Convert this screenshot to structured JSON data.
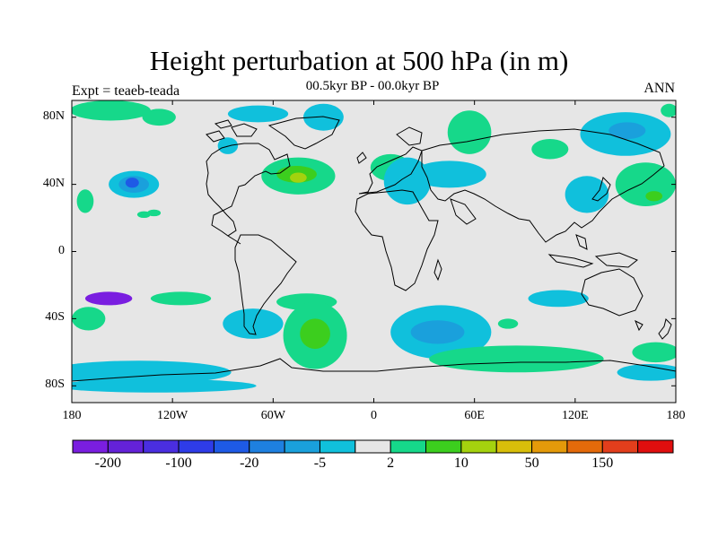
{
  "title": "Height perturbation at 500 hPa (in m)",
  "subtitle": "00.5kyr BP - 00.0kyr BP",
  "left_label": "Expt = teaeb-teada",
  "right_label": "ANN",
  "lat_ticks": [
    {
      "value": 80,
      "label": "80N"
    },
    {
      "value": 40,
      "label": "40N"
    },
    {
      "value": 0,
      "label": "0"
    },
    {
      "value": -40,
      "label": "40S"
    },
    {
      "value": -80,
      "label": "80S"
    }
  ],
  "lon_ticks": [
    {
      "value": -180,
      "label": "180"
    },
    {
      "value": -120,
      "label": "120W"
    },
    {
      "value": -60,
      "label": "60W"
    },
    {
      "value": 0,
      "label": "0"
    },
    {
      "value": 60,
      "label": "60E"
    },
    {
      "value": 120,
      "label": "120E"
    },
    {
      "value": 180,
      "label": "180"
    }
  ],
  "colorbar": {
    "colors": [
      "#7a1ee0",
      "#6422d8",
      "#4a2ee0",
      "#2e3ce8",
      "#1e5ae6",
      "#1e80e0",
      "#1aa0dc",
      "#10c0dc",
      "#e6e6e6",
      "#16d88a",
      "#3cce1e",
      "#a4d20e",
      "#d8be0a",
      "#e49a0a",
      "#e46a0a",
      "#e23e1c",
      "#e00e0e"
    ],
    "labels": [
      {
        "boundary": 1,
        "text": "-200"
      },
      {
        "boundary": 3,
        "text": "-100"
      },
      {
        "boundary": 5,
        "text": "-20"
      },
      {
        "boundary": 7,
        "text": "-5"
      },
      {
        "boundary": 9,
        "text": "2"
      },
      {
        "boundary": 11,
        "text": "10"
      },
      {
        "boundary": 13,
        "text": "50"
      },
      {
        "boundary": 15,
        "text": "150"
      }
    ]
  },
  "anomaly_regions": [
    {
      "lon": -143,
      "lat": 40,
      "rx": 15,
      "ry": 8,
      "level": "cyan"
    },
    {
      "lon": -143,
      "lat": 40,
      "rx": 9,
      "ry": 5,
      "level": "blue"
    },
    {
      "lon": -144,
      "lat": 41,
      "rx": 4,
      "ry": 3,
      "level": "deepblue"
    },
    {
      "lon": -157,
      "lat": 84,
      "rx": 24,
      "ry": 6,
      "level": "green"
    },
    {
      "lon": -128,
      "lat": 80,
      "rx": 10,
      "ry": 5,
      "level": "green"
    },
    {
      "lon": -172,
      "lat": 30,
      "rx": 5,
      "ry": 7,
      "level": "green"
    },
    {
      "lon": -137,
      "lat": 22,
      "rx": 4,
      "ry": 2,
      "level": "green"
    },
    {
      "lon": -69,
      "lat": 82,
      "rx": 18,
      "ry": 5,
      "level": "cyan"
    },
    {
      "lon": -87,
      "lat": 63,
      "rx": 6,
      "ry": 5,
      "level": "cyan"
    },
    {
      "lon": -45,
      "lat": 45,
      "rx": 22,
      "ry": 11,
      "level": "green"
    },
    {
      "lon": -46,
      "lat": 46,
      "rx": 12,
      "ry": 5,
      "level": "lime"
    },
    {
      "lon": -45,
      "lat": 44,
      "rx": 5,
      "ry": 3,
      "level": "yellow"
    },
    {
      "lon": -30,
      "lat": 80,
      "rx": 12,
      "ry": 8,
      "level": "cyan"
    },
    {
      "lon": 10,
      "lat": 50,
      "rx": 12,
      "ry": 8,
      "level": "green"
    },
    {
      "lon": 20,
      "lat": 42,
      "rx": 14,
      "ry": 14,
      "level": "cyan"
    },
    {
      "lon": 45,
      "lat": 46,
      "rx": 22,
      "ry": 8,
      "level": "cyan"
    },
    {
      "lon": 57,
      "lat": 71,
      "rx": 13,
      "ry": 13,
      "level": "green"
    },
    {
      "lon": 105,
      "lat": 61,
      "rx": 11,
      "ry": 6,
      "level": "green"
    },
    {
      "lon": 150,
      "lat": 70,
      "rx": 27,
      "ry": 13,
      "level": "cyan"
    },
    {
      "lon": 151,
      "lat": 72,
      "rx": 11,
      "ry": 5,
      "level": "blue"
    },
    {
      "lon": 162,
      "lat": 40,
      "rx": 18,
      "ry": 13,
      "level": "green"
    },
    {
      "lon": 167,
      "lat": 33,
      "rx": 5,
      "ry": 3,
      "level": "lime"
    },
    {
      "lon": 127,
      "lat": 34,
      "rx": 13,
      "ry": 11,
      "level": "cyan"
    },
    {
      "lon": 176,
      "lat": 84,
      "rx": 5,
      "ry": 4,
      "level": "green"
    },
    {
      "lon": -131,
      "lat": 23,
      "rx": 4,
      "ry": 2,
      "level": "green"
    },
    {
      "lon": -158,
      "lat": -28,
      "rx": 14,
      "ry": 4,
      "level": "violet"
    },
    {
      "lon": -115,
      "lat": -28,
      "rx": 18,
      "ry": 4,
      "level": "green"
    },
    {
      "lon": -170,
      "lat": -40,
      "rx": 10,
      "ry": 7,
      "level": "green"
    },
    {
      "lon": -72,
      "lat": -43,
      "rx": 18,
      "ry": 9,
      "level": "cyan"
    },
    {
      "lon": -40,
      "lat": -30,
      "rx": 18,
      "ry": 5,
      "level": "green"
    },
    {
      "lon": -35,
      "lat": -50,
      "rx": 19,
      "ry": 20,
      "level": "green"
    },
    {
      "lon": -35,
      "lat": -49,
      "rx": 9,
      "ry": 9,
      "level": "lime"
    },
    {
      "lon": 40,
      "lat": -48,
      "rx": 30,
      "ry": 16,
      "level": "cyan"
    },
    {
      "lon": 38,
      "lat": -48,
      "rx": 16,
      "ry": 7,
      "level": "blue"
    },
    {
      "lon": 80,
      "lat": -43,
      "rx": 6,
      "ry": 3,
      "level": "green"
    },
    {
      "lon": 110,
      "lat": -28,
      "rx": 18,
      "ry": 5,
      "level": "cyan"
    },
    {
      "lon": 85,
      "lat": -64,
      "rx": 52,
      "ry": 8,
      "level": "green"
    },
    {
      "lon": 168,
      "lat": -60,
      "rx": 14,
      "ry": 6,
      "level": "green"
    },
    {
      "lon": -140,
      "lat": -72,
      "rx": 55,
      "ry": 7,
      "level": "cyan"
    },
    {
      "lon": 165,
      "lat": -72,
      "rx": 20,
      "ry": 5,
      "level": "cyan"
    },
    {
      "lon": -130,
      "lat": -80,
      "rx": 60,
      "ry": 4,
      "level": "cyan"
    }
  ],
  "level_colors": {
    "violet": "#7a1ee0",
    "deepblue": "#1e5ae6",
    "blue": "#1aa0dc",
    "cyan": "#10c0dc",
    "green": "#16d88a",
    "lime": "#3cce1e",
    "yellow": "#a4d20e"
  },
  "map_background": "#e6e6e6"
}
